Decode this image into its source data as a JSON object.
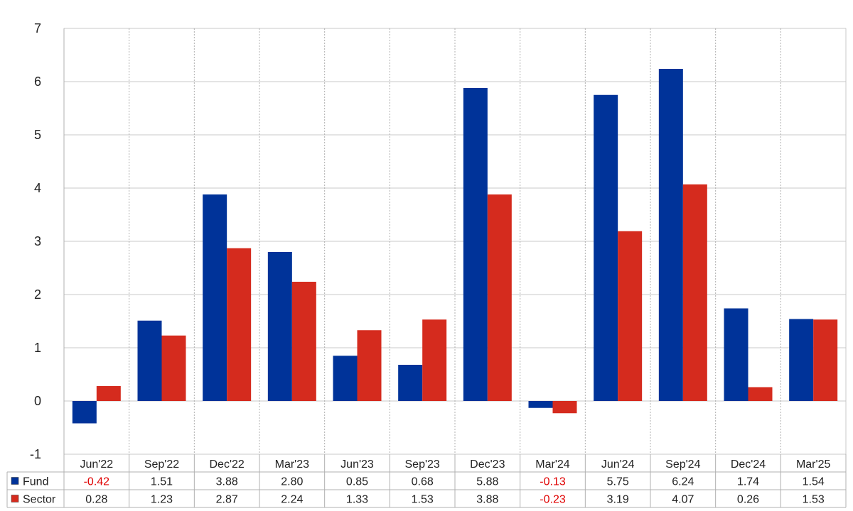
{
  "chart_data": {
    "type": "bar",
    "categories": [
      "Jun'22",
      "Sep'22",
      "Dec'22",
      "Mar'23",
      "Jun'23",
      "Sep'23",
      "Dec'23",
      "Mar'24",
      "Jun'24",
      "Sep'24",
      "Dec'24",
      "Mar'25"
    ],
    "series": [
      {
        "name": "Fund",
        "color": "#003399",
        "values": [
          -0.42,
          1.51,
          3.88,
          2.8,
          0.85,
          0.68,
          5.88,
          -0.13,
          5.75,
          6.24,
          1.74,
          1.54
        ],
        "labels": [
          "-0.42",
          "1.51",
          "3.88",
          "2.80",
          "0.85",
          "0.68",
          "5.88",
          "-0.13",
          "5.75",
          "6.24",
          "1.74",
          "1.54"
        ]
      },
      {
        "name": "Sector",
        "color": "#d52b1e",
        "values": [
          0.28,
          1.23,
          2.87,
          2.24,
          1.33,
          1.53,
          3.88,
          -0.23,
          3.19,
          4.07,
          0.26,
          1.53
        ],
        "labels": [
          "0.28",
          "1.23",
          "2.87",
          "2.24",
          "1.33",
          "1.53",
          "3.88",
          "-0.23",
          "3.19",
          "4.07",
          "0.26",
          "1.53"
        ]
      }
    ],
    "ylim": [
      -1,
      7
    ],
    "yticks": [
      "-1",
      "0",
      "1",
      "2",
      "3",
      "4",
      "5",
      "6",
      "7"
    ],
    "grid": true,
    "legend": "data-table-below",
    "negative_value_color": "#e00000"
  }
}
